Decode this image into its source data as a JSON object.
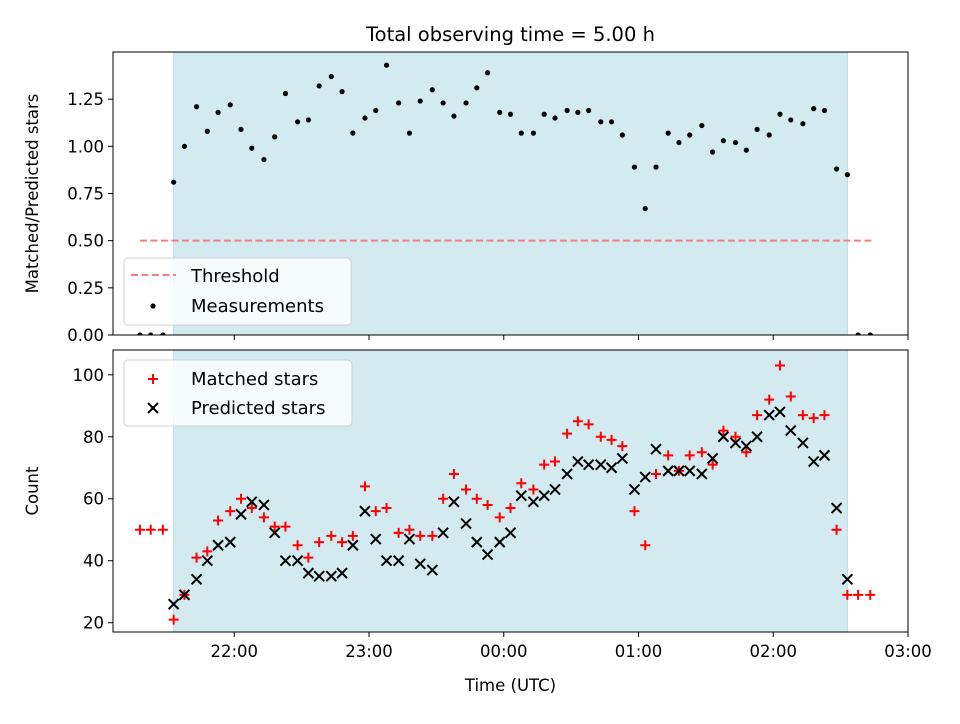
{
  "chart_data": [
    {
      "type": "scatter",
      "title": "Total observing time = 5.00 h",
      "xlabel": "",
      "ylabel": "Matched/Predicted stars",
      "ylim": [
        0,
        1.5
      ],
      "yticks": [
        0,
        0.25,
        0.5,
        0.75,
        1.0,
        1.25
      ],
      "ytick_labels": [
        "0.00",
        "0.25",
        "0.50",
        "0.75",
        "1.00",
        "1.25"
      ],
      "xlim": [
        21.1,
        27.0
      ],
      "shaded_interval": [
        21.55,
        26.55
      ],
      "shade_color": "#d3eaf1",
      "threshold": {
        "name": "Threshold",
        "value": 0.5,
        "x_range": [
          21.3,
          26.75
        ],
        "color": "#f47f7f"
      },
      "legend_location": "lower-left",
      "series": [
        {
          "name": "Measurements",
          "color": "#000000",
          "marker": "dot",
          "x": [
            21.3,
            21.38,
            21.47,
            21.55,
            21.63,
            21.72,
            21.8,
            21.88,
            21.97,
            22.05,
            22.13,
            22.22,
            22.3,
            22.38,
            22.47,
            22.55,
            22.63,
            22.72,
            22.8,
            22.88,
            22.97,
            23.05,
            23.13,
            23.22,
            23.3,
            23.38,
            23.47,
            23.55,
            23.63,
            23.72,
            23.8,
            23.88,
            23.97,
            24.05,
            24.13,
            24.22,
            24.3,
            24.38,
            24.47,
            24.55,
            24.63,
            24.72,
            24.8,
            24.88,
            24.97,
            25.05,
            25.13,
            25.22,
            25.3,
            25.38,
            25.47,
            25.55,
            25.63,
            25.72,
            25.8,
            25.88,
            25.97,
            26.05,
            26.13,
            26.22,
            26.3,
            26.38,
            26.47,
            26.55,
            26.63,
            26.72
          ],
          "y": [
            0,
            0,
            0,
            0.81,
            1.0,
            1.21,
            1.08,
            1.18,
            1.22,
            1.09,
            0.99,
            0.93,
            1.05,
            1.28,
            1.13,
            1.14,
            1.32,
            1.37,
            1.29,
            1.07,
            1.15,
            1.19,
            1.43,
            1.23,
            1.07,
            1.24,
            1.3,
            1.23,
            1.16,
            1.23,
            1.31,
            1.39,
            1.18,
            1.17,
            1.07,
            1.07,
            1.17,
            1.15,
            1.19,
            1.18,
            1.19,
            1.13,
            1.13,
            1.06,
            0.89,
            0.67,
            0.89,
            1.07,
            1.02,
            1.06,
            1.11,
            0.97,
            1.03,
            1.02,
            0.98,
            1.09,
            1.06,
            1.17,
            1.14,
            1.12,
            1.2,
            1.19,
            0.88,
            0.85,
            0,
            0
          ]
        }
      ]
    },
    {
      "type": "scatter",
      "title": "",
      "xlabel": "Time (UTC)",
      "ylabel": "Count",
      "ylim": [
        17,
        108
      ],
      "yticks": [
        20,
        40,
        60,
        80,
        100
      ],
      "ytick_labels": [
        "20",
        "40",
        "60",
        "80",
        "100"
      ],
      "xlim": [
        21.1,
        27.0
      ],
      "xticks": [
        22,
        23,
        24,
        25,
        26,
        27
      ],
      "xtick_labels": [
        "22:00",
        "23:00",
        "00:00",
        "01:00",
        "02:00",
        "03:00"
      ],
      "shaded_interval": [
        21.55,
        26.55
      ],
      "shade_color": "#d3eaf1",
      "legend_location": "upper-left",
      "series": [
        {
          "name": "Matched stars",
          "color": "#ff0000",
          "marker": "plus",
          "x": [
            21.3,
            21.38,
            21.47,
            21.55,
            21.63,
            21.72,
            21.8,
            21.88,
            21.97,
            22.05,
            22.13,
            22.22,
            22.3,
            22.38,
            22.47,
            22.55,
            22.63,
            22.72,
            22.8,
            22.88,
            22.97,
            23.05,
            23.13,
            23.22,
            23.3,
            23.38,
            23.47,
            23.55,
            23.63,
            23.72,
            23.8,
            23.88,
            23.97,
            24.05,
            24.13,
            24.22,
            24.3,
            24.38,
            24.47,
            24.55,
            24.63,
            24.72,
            24.8,
            24.88,
            24.97,
            25.05,
            25.13,
            25.22,
            25.3,
            25.38,
            25.47,
            25.55,
            25.63,
            25.72,
            25.8,
            25.88,
            25.97,
            26.05,
            26.13,
            26.22,
            26.3,
            26.38,
            26.47,
            26.55,
            26.63,
            26.72
          ],
          "y": [
            50,
            50,
            50,
            21,
            29,
            41,
            43,
            53,
            56,
            60,
            57,
            54,
            51,
            51,
            45,
            41,
            46,
            48,
            46,
            48,
            64,
            56,
            57,
            49,
            50,
            48,
            48,
            60,
            68,
            63,
            60,
            58,
            54,
            57,
            65,
            63,
            71,
            72,
            81,
            85,
            84,
            80,
            79,
            77,
            56,
            45,
            68,
            74,
            69,
            74,
            75,
            71,
            82,
            80,
            75,
            87,
            92,
            103,
            93,
            87,
            86,
            87,
            50,
            29,
            29,
            29
          ]
        },
        {
          "name": "Predicted stars",
          "color": "#000000",
          "marker": "x",
          "x": [
            21.55,
            21.63,
            21.72,
            21.8,
            21.88,
            21.97,
            22.05,
            22.13,
            22.22,
            22.3,
            22.38,
            22.47,
            22.55,
            22.63,
            22.72,
            22.8,
            22.88,
            22.97,
            23.05,
            23.13,
            23.22,
            23.3,
            23.38,
            23.47,
            23.55,
            23.63,
            23.72,
            23.8,
            23.88,
            23.97,
            24.05,
            24.13,
            24.22,
            24.3,
            24.38,
            24.47,
            24.55,
            24.63,
            24.72,
            24.8,
            24.88,
            24.97,
            25.05,
            25.13,
            25.22,
            25.3,
            25.38,
            25.47,
            25.55,
            25.63,
            25.72,
            25.8,
            25.88,
            25.97,
            26.05,
            26.13,
            26.22,
            26.3,
            26.38,
            26.47,
            26.55
          ],
          "y": [
            26,
            29,
            34,
            40,
            45,
            46,
            55,
            59,
            58,
            49,
            40,
            40,
            36,
            35,
            35,
            36,
            45,
            56,
            47,
            40,
            40,
            47,
            39,
            37,
            49,
            59,
            52,
            46,
            42,
            46,
            49,
            61,
            59,
            61,
            63,
            68,
            72,
            71,
            71,
            70,
            73,
            63,
            67,
            76,
            69,
            69,
            69,
            68,
            73,
            80,
            78,
            77,
            80,
            87,
            88,
            82,
            78,
            72,
            74,
            57,
            34
          ]
        }
      ]
    }
  ]
}
